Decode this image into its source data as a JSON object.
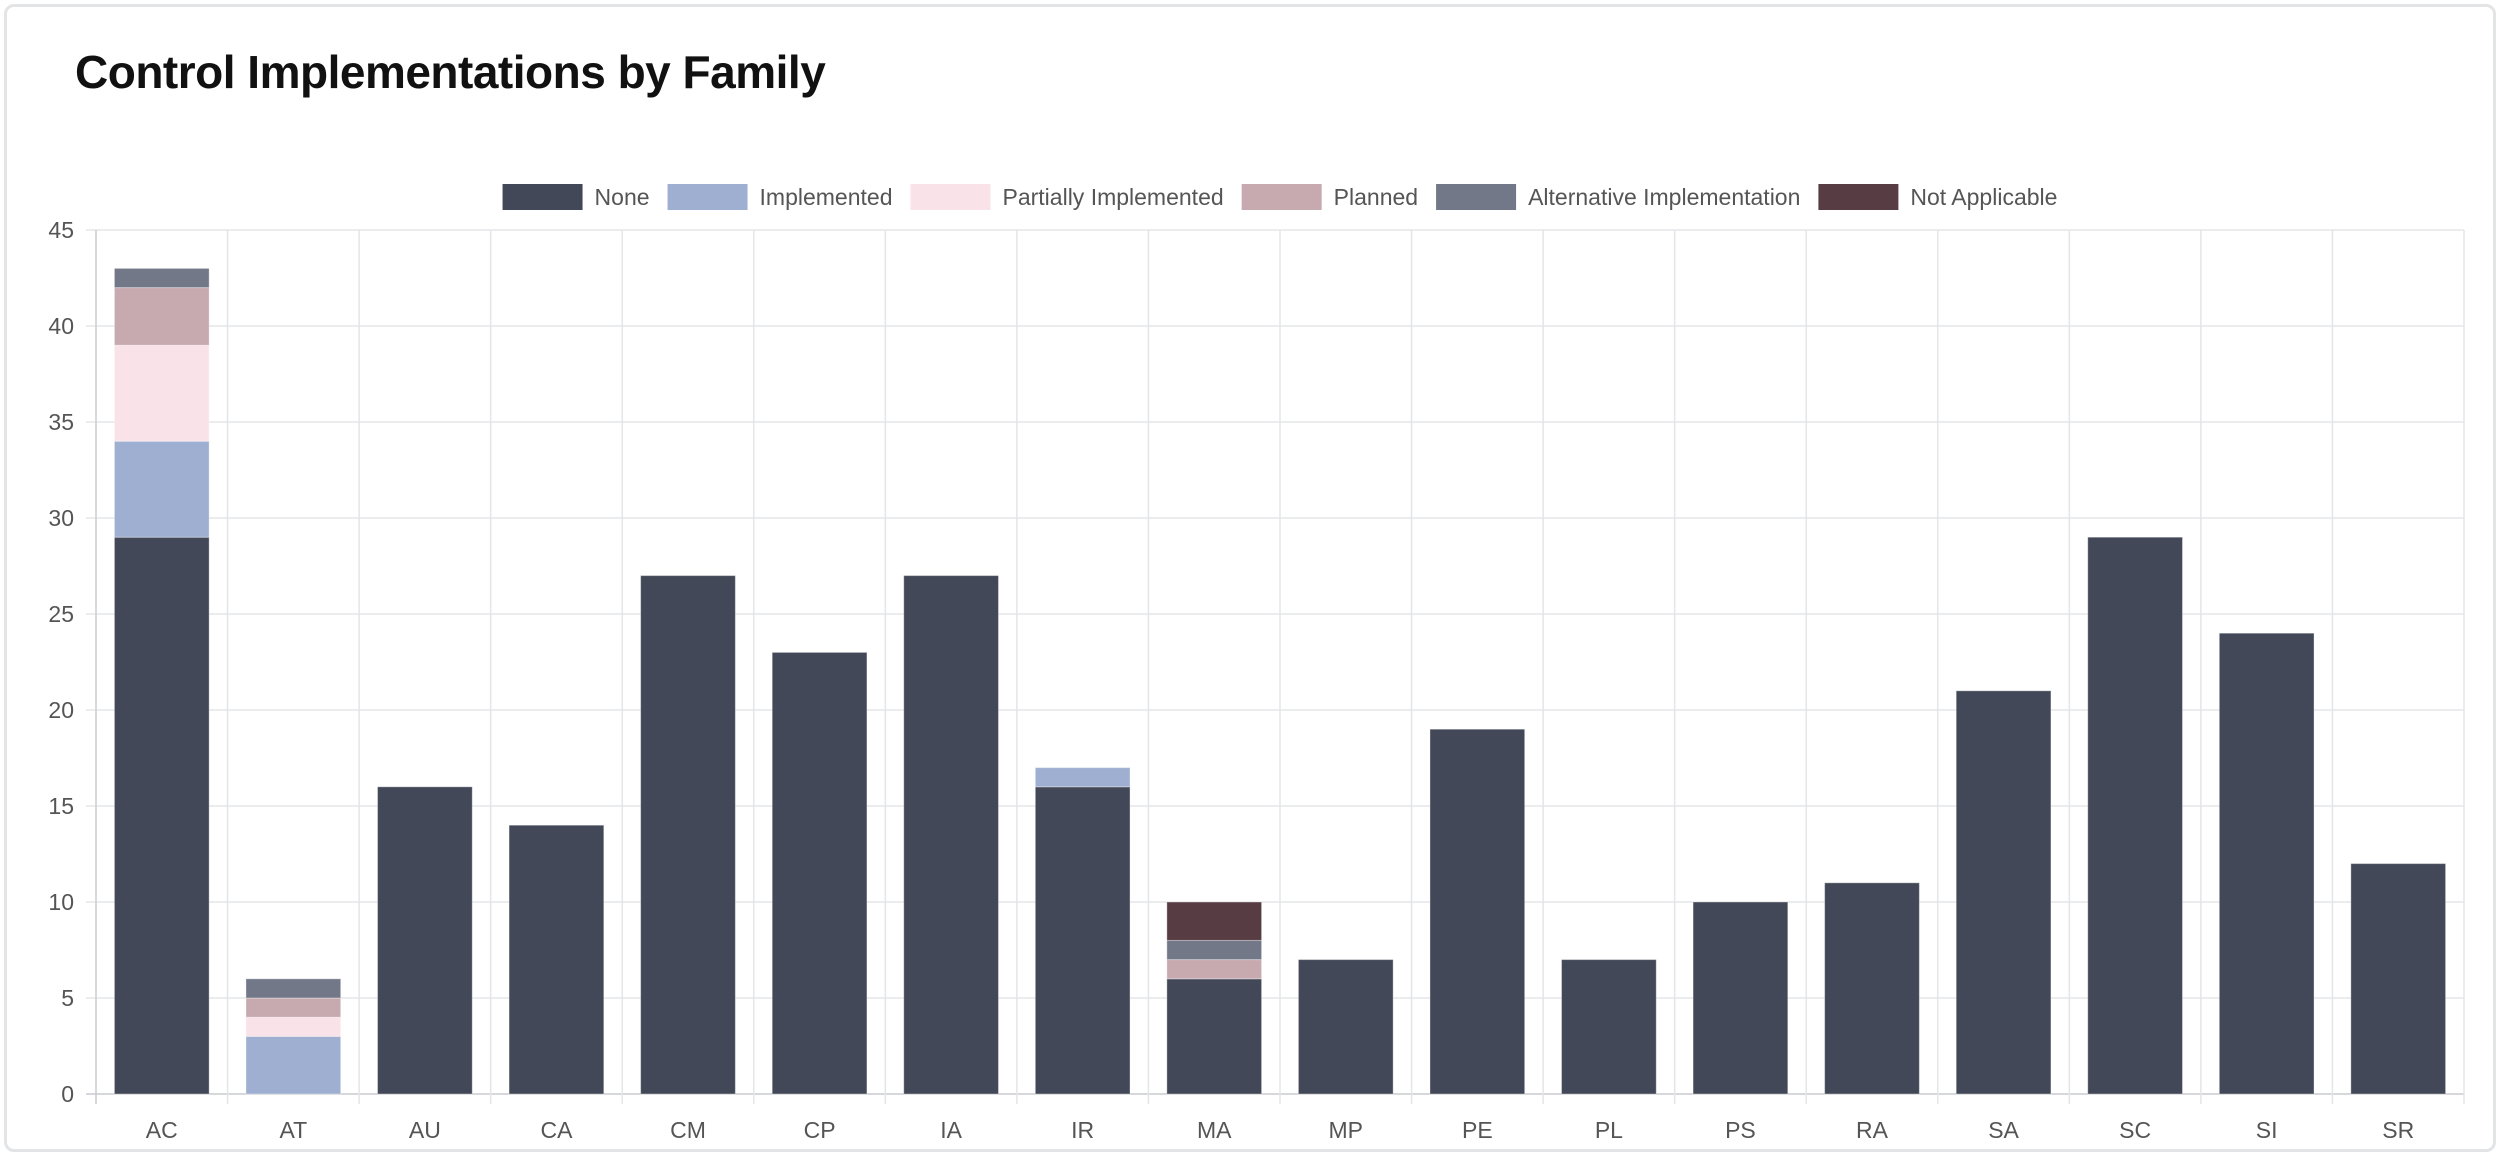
{
  "title": "Control Implementations by Family",
  "chart_data": {
    "type": "bar",
    "stacked": true,
    "categories": [
      "AC",
      "AT",
      "AU",
      "CA",
      "CM",
      "CP",
      "IA",
      "IR",
      "MA",
      "MP",
      "PE",
      "PL",
      "PS",
      "RA",
      "SA",
      "SC",
      "SI",
      "SR"
    ],
    "series": [
      {
        "name": "None",
        "color": "#424857",
        "values": [
          29,
          0,
          16,
          14,
          27,
          23,
          27,
          16,
          6,
          7,
          19,
          7,
          10,
          11,
          21,
          29,
          24,
          12
        ]
      },
      {
        "name": "Implemented",
        "color": "#9fafd1",
        "values": [
          5,
          3,
          0,
          0,
          0,
          0,
          0,
          1,
          0,
          0,
          0,
          0,
          0,
          0,
          0,
          0,
          0,
          0
        ]
      },
      {
        "name": "Partially Implemented",
        "color": "#f9e2e8",
        "values": [
          5,
          1,
          0,
          0,
          0,
          0,
          0,
          0,
          0,
          0,
          0,
          0,
          0,
          0,
          0,
          0,
          0,
          0
        ]
      },
      {
        "name": "Planned",
        "color": "#c7a9b0",
        "values": [
          3,
          1,
          0,
          0,
          0,
          0,
          0,
          0,
          1,
          0,
          0,
          0,
          0,
          0,
          0,
          0,
          0,
          0
        ]
      },
      {
        "name": "Alternative Implementation",
        "color": "#727888",
        "values": [
          1,
          1,
          0,
          0,
          0,
          0,
          0,
          0,
          1,
          0,
          0,
          0,
          0,
          0,
          0,
          0,
          0,
          0
        ]
      },
      {
        "name": "Not Applicable",
        "color": "#583c44",
        "values": [
          0,
          0,
          0,
          0,
          0,
          0,
          0,
          0,
          2,
          0,
          0,
          0,
          0,
          0,
          0,
          0,
          0,
          0
        ]
      }
    ],
    "yticks": [
      0,
      5,
      10,
      15,
      20,
      25,
      30,
      35,
      40,
      45
    ],
    "ylim": [
      0,
      45
    ],
    "legend_position": "top",
    "grid": true,
    "xlabel": "",
    "ylabel": ""
  }
}
